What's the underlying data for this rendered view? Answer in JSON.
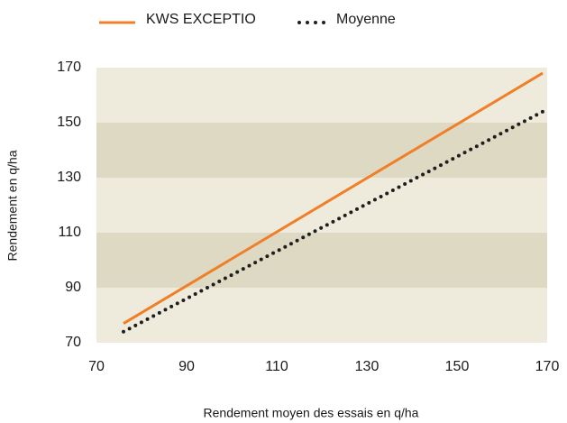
{
  "chart_data": {
    "type": "line",
    "x_label": "Rendement moyen des essais en q/ha",
    "y_label": "Rendement en q/ha",
    "x": [
      76,
      169
    ],
    "series": [
      {
        "name": "KWS EXCEPTIO",
        "color": "#f07f2a",
        "style": "solid",
        "values": [
          77,
          168
        ]
      },
      {
        "name": "Moyenne",
        "color": "#1e1e1e",
        "style": "dotted",
        "values": [
          74,
          154
        ]
      }
    ],
    "xlim": [
      70,
      170
    ],
    "xticks": [
      70,
      90,
      110,
      130,
      150,
      170
    ],
    "ylim": [
      70,
      170
    ],
    "yticks": [
      70,
      90,
      110,
      130,
      150,
      170
    ],
    "band_colors": [
      "#efebdc",
      "#ddd9c3"
    ],
    "legend": "top"
  }
}
